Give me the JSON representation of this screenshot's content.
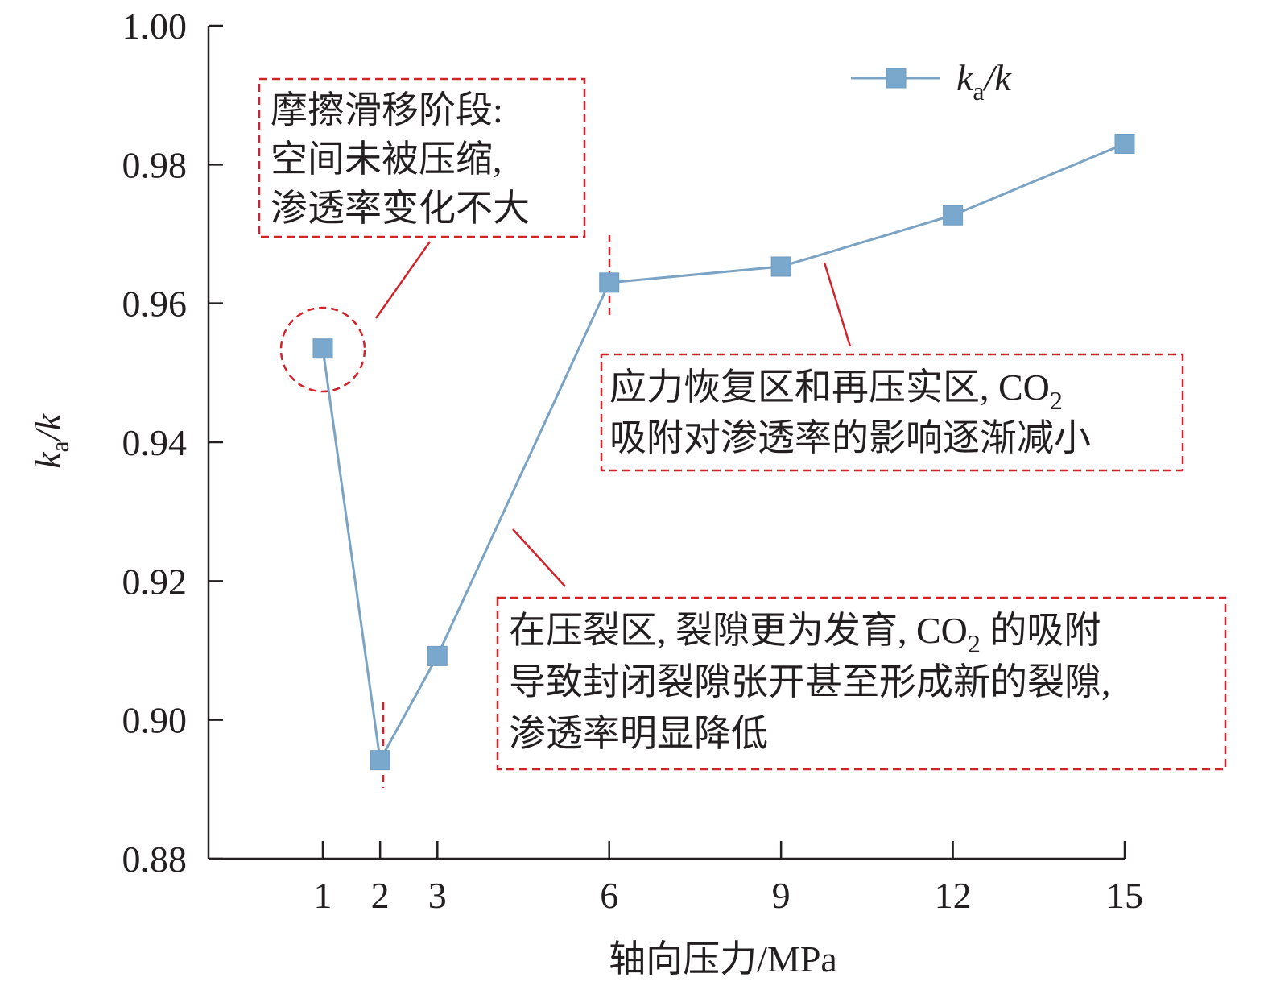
{
  "chart_data": {
    "type": "line",
    "x": [
      1,
      2,
      3,
      6,
      9,
      12,
      15
    ],
    "x_ticks": [
      "1",
      "2",
      "3",
      "6",
      "9",
      "12",
      "15"
    ],
    "series": [
      {
        "name_parts": {
          "main": "k",
          "sub": "a",
          "tail": "/k"
        },
        "values": [
          0.9535,
          0.8942,
          0.9092,
          0.963,
          0.9653,
          0.9727,
          0.983
        ],
        "color": "#7aa3c4",
        "marker_color": "#7aa7cc",
        "marker": "square"
      }
    ],
    "ylim": [
      0.88,
      1.0
    ],
    "y_ticks": [
      "0.88",
      "0.90",
      "0.92",
      "0.94",
      "0.96",
      "0.98",
      "1.00"
    ],
    "xlabel": "轴向压力/MPa",
    "ylabel_parts": {
      "main": "k",
      "sub": "a",
      "tail": "/k"
    },
    "legend_position": "top-right",
    "grid": false,
    "annotation_color": "#d2232a",
    "annotations": [
      {
        "lines": [
          "摩擦滑移阶段:",
          "空间未被压缩,",
          "渗透率变化不大"
        ]
      },
      {
        "line1_pre": "应力恢复区和再压实区, CO",
        "line1_sub": "2",
        "line2": "吸附对渗透率的影响逐渐减小"
      },
      {
        "line1_pre": "在压裂区, 裂隙更为发育, CO",
        "line1_sub": "2",
        "line1_post": " 的吸附",
        "line2": "导致封闭裂隙张开甚至形成新的裂隙,",
        "line3": "渗透率明显降低"
      }
    ]
  }
}
